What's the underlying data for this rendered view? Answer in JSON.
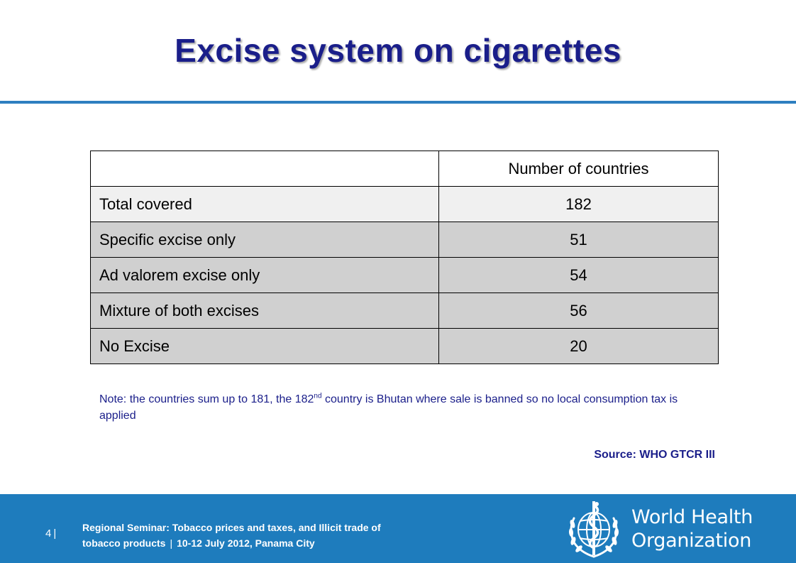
{
  "slide": {
    "title": "Excise system on cigarettes"
  },
  "table": {
    "header": "Number of countries",
    "rows": [
      {
        "label": "Total covered",
        "value": "182"
      },
      {
        "label": "Specific excise only",
        "value": "51"
      },
      {
        "label": "Ad valorem excise only",
        "value": "54"
      },
      {
        "label": "Mixture of both excises",
        "value": "56"
      },
      {
        "label": "No Excise",
        "value": "20"
      }
    ]
  },
  "note": {
    "prefix": "Note: the countries sum up to 181, the 182",
    "superscript": "nd",
    "suffix": " country is Bhutan where sale is banned so no local consumption tax is applied"
  },
  "source": "Source: WHO GTCR III",
  "footer": {
    "page_number": "4",
    "line1": "Regional  Seminar: Tobacco prices and taxes, and Illicit trade of",
    "line2_a": "tobacco products",
    "line2_b": "10-12  July 2012, Panama City",
    "org_name_line1": "World Health",
    "org_name_line2": "Organization"
  },
  "colors": {
    "title": "#1a1e8a",
    "accent_rule": "#2e7fc0",
    "footer_bg": "#1e7cbd",
    "row_light": "#f0f0f0",
    "row_dark": "#d0d0d0"
  },
  "icons": {
    "logo": "who-emblem-icon"
  }
}
